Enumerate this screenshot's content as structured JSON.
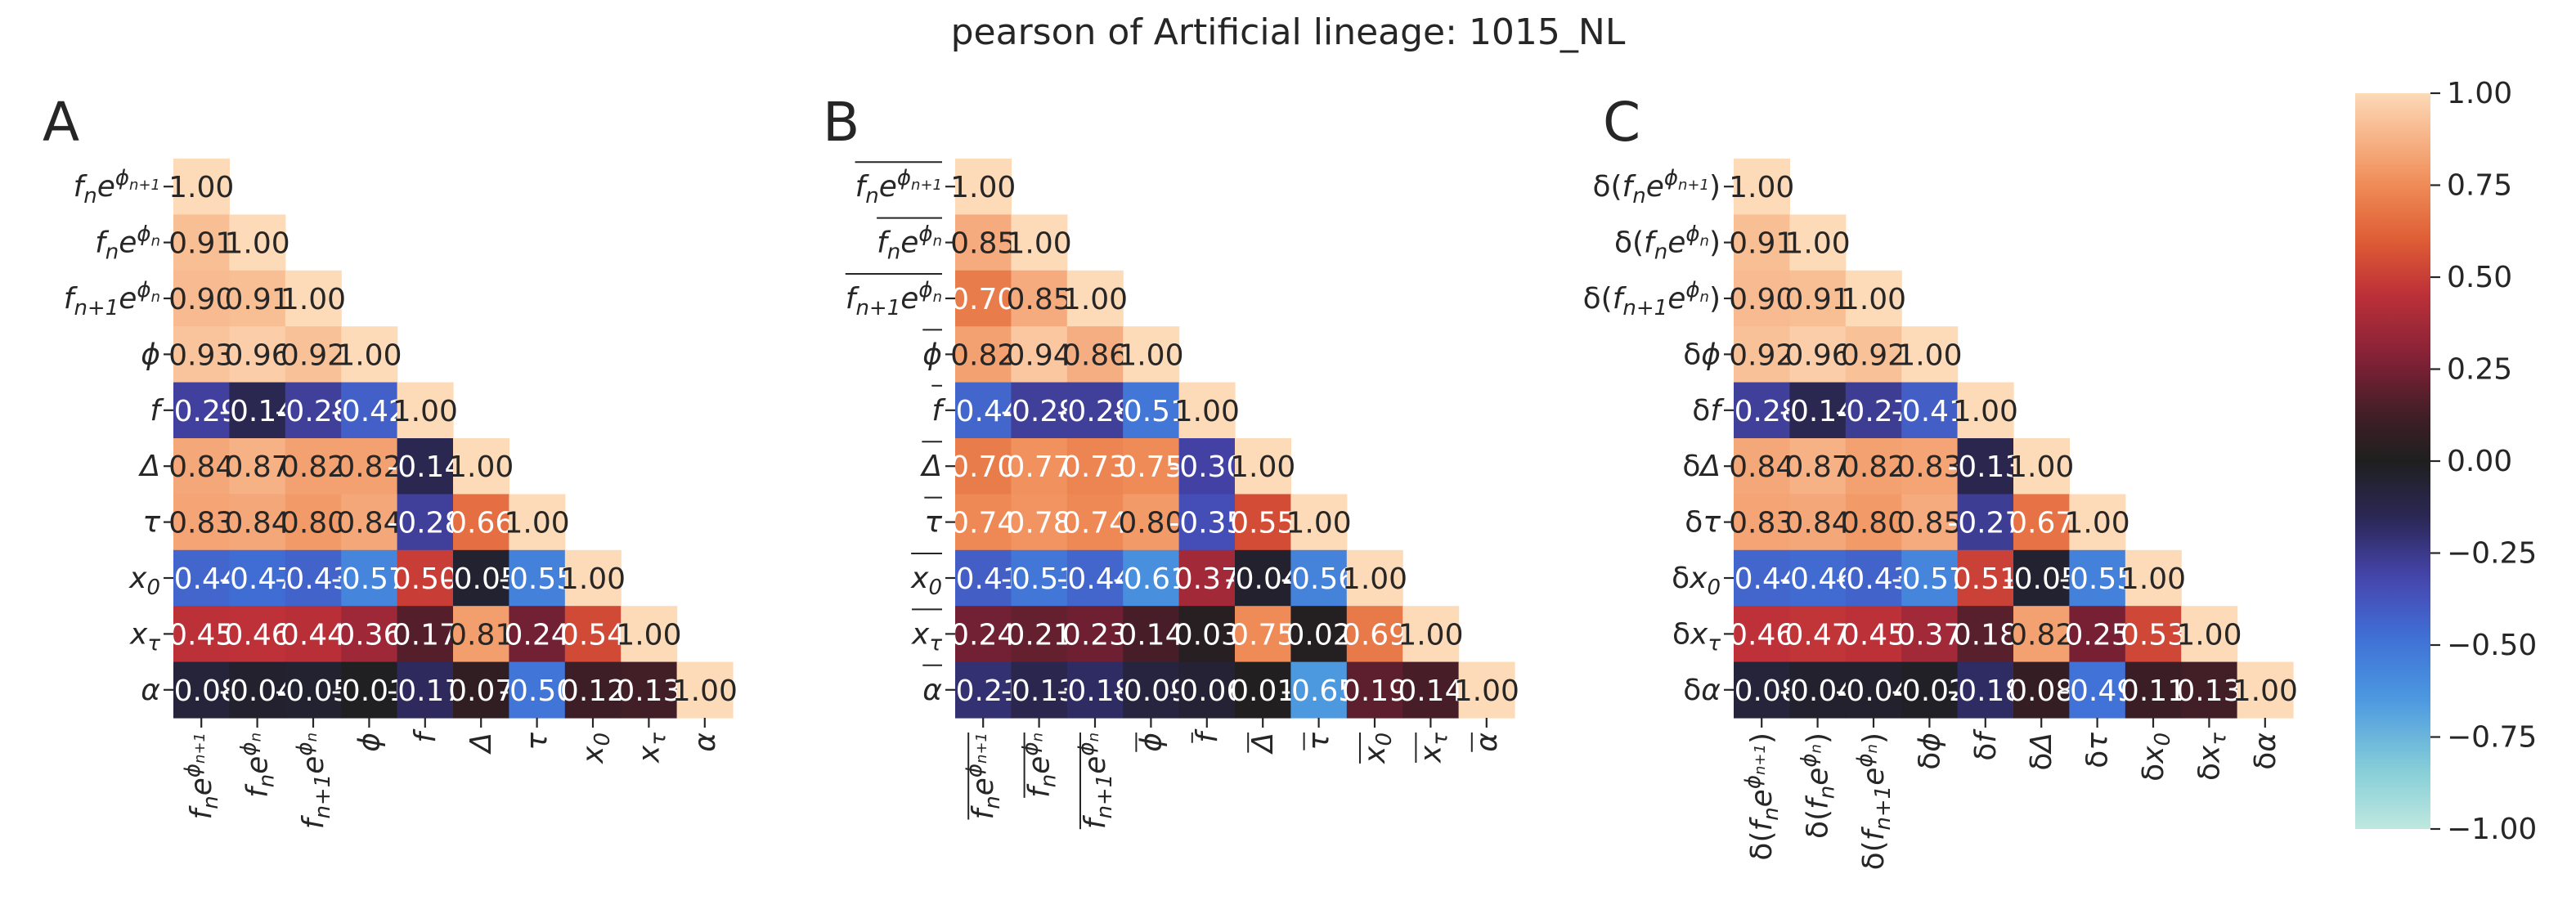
{
  "chart_data": {
    "type": "heatmap",
    "title": "pearson of Artificial lineage: 1015_NL",
    "colormap": "icefire",
    "vmin": -1.0,
    "vmax": 1.0,
    "colorbar_ticks": [
      "1.00",
      "0.75",
      "0.50",
      "0.25",
      "0.00",
      "−0.25",
      "−0.50",
      "−0.75",
      "−1.00"
    ],
    "colorbar_tick_values": [
      1.0,
      0.75,
      0.5,
      0.25,
      0.0,
      -0.25,
      -0.5,
      -0.75,
      -1.0
    ],
    "panels": [
      {
        "letter": "A",
        "labels": [
          "fₙe^{φₙ₊₁}",
          "fₙe^{φₙ}",
          "fₙ₊₁e^{φₙ}",
          "φ",
          "f",
          "Δ",
          "τ",
          "x₀",
          "xτ",
          "α"
        ],
        "label_parts": [
          {
            "base": "f",
            "sub": "n",
            "mid": "e",
            "sup": "ϕ",
            "supsub": "n+1"
          },
          {
            "base": "f",
            "sub": "n",
            "mid": "e",
            "sup": "ϕ",
            "supsub": "n"
          },
          {
            "base": "f",
            "sub": "n+1",
            "mid": "e",
            "sup": "ϕ",
            "supsub": "n"
          },
          {
            "base": "ϕ"
          },
          {
            "base": "f"
          },
          {
            "base": "Δ"
          },
          {
            "base": "τ"
          },
          {
            "base": "x",
            "sub": "0"
          },
          {
            "base": "x",
            "sub": "τ"
          },
          {
            "base": "α"
          }
        ],
        "values": [
          [
            1.0
          ],
          [
            0.91,
            1.0
          ],
          [
            0.9,
            0.91,
            1.0
          ],
          [
            0.93,
            0.96,
            0.92,
            1.0
          ],
          [
            -0.29,
            -0.14,
            -0.28,
            -0.42,
            1.0
          ],
          [
            0.84,
            0.87,
            0.82,
            0.82,
            -0.14,
            1.0
          ],
          [
            0.83,
            0.84,
            0.8,
            0.84,
            -0.28,
            0.66,
            1.0
          ],
          [
            -0.44,
            -0.47,
            -0.43,
            -0.57,
            0.5,
            -0.05,
            -0.55,
            1.0
          ],
          [
            0.45,
            0.46,
            0.44,
            0.36,
            0.17,
            0.81,
            0.24,
            0.54,
            1.0
          ],
          [
            -0.08,
            -0.04,
            -0.05,
            -0.01,
            -0.17,
            0.07,
            -0.5,
            0.12,
            0.13,
            1.0
          ]
        ],
        "text": [
          [
            "1.00"
          ],
          [
            "0.91",
            "1.00"
          ],
          [
            "0.90",
            "0.91",
            "1.00"
          ],
          [
            "0.93",
            "0.96",
            "0.92",
            "1.00"
          ],
          [
            "-0.29",
            "-0.14",
            "-0.28",
            "-0.42",
            "1.00"
          ],
          [
            "0.84",
            "0.87",
            "0.82",
            "0.82",
            "-0.14",
            "1.00"
          ],
          [
            "0.83",
            "0.84",
            "0.80",
            "0.84",
            "-0.28",
            "0.66",
            "1.00"
          ],
          [
            "-0.44",
            "-0.47",
            "-0.43",
            "-0.57",
            "0.50",
            "-0.05",
            "-0.55",
            "1.00"
          ],
          [
            "0.45",
            "0.46",
            "0.44",
            "0.36",
            "0.17",
            "0.81",
            "0.24",
            "0.54",
            "1.00"
          ],
          [
            "-0.08",
            "-0.04",
            "-0.05",
            "-0.01",
            "-0.17",
            "0.07",
            "-0.50",
            "0.12",
            "0.13",
            "1.00"
          ]
        ]
      },
      {
        "letter": "B",
        "labels": [
          "mean(fₙe^{φₙ₊₁})",
          "mean(fₙe^{φₙ})",
          "mean(fₙ₊₁e^{φₙ})",
          "mean(φ)",
          "mean(f)",
          "mean(Δ)",
          "mean(τ)",
          "mean(x₀)",
          "mean(xτ)",
          "mean(α)"
        ],
        "label_parts": [
          {
            "bar": true,
            "base": "f",
            "sub": "n",
            "mid": "e",
            "sup": "ϕ",
            "supsub": "n+1"
          },
          {
            "bar": true,
            "base": "f",
            "sub": "n",
            "mid": "e",
            "sup": "ϕ",
            "supsub": "n"
          },
          {
            "bar": true,
            "base": "f",
            "sub": "n+1",
            "mid": "e",
            "sup": "ϕ",
            "supsub": "n"
          },
          {
            "bar": true,
            "base": "ϕ"
          },
          {
            "bar": true,
            "base": "f"
          },
          {
            "bar": true,
            "base": "Δ"
          },
          {
            "bar": true,
            "base": "τ"
          },
          {
            "bar": true,
            "base": "x",
            "sub": "0"
          },
          {
            "bar": true,
            "base": "x",
            "sub": "τ"
          },
          {
            "bar": true,
            "base": "α"
          }
        ],
        "values": [
          [
            1.0
          ],
          [
            0.85,
            1.0
          ],
          [
            0.7,
            0.85,
            1.0
          ],
          [
            0.82,
            0.94,
            0.86,
            1.0
          ],
          [
            -0.44,
            -0.28,
            -0.28,
            -0.51,
            1.0
          ],
          [
            0.7,
            0.77,
            0.73,
            0.75,
            -0.3,
            1.0
          ],
          [
            0.74,
            0.78,
            0.74,
            0.8,
            -0.35,
            0.55,
            1.0
          ],
          [
            -0.41,
            -0.51,
            -0.44,
            -0.61,
            0.37,
            -0.04,
            -0.56,
            1.0
          ],
          [
            0.24,
            0.21,
            0.23,
            0.14,
            0.03,
            0.75,
            0.02,
            0.69,
            1.0
          ],
          [
            -0.21,
            -0.13,
            -0.18,
            -0.09,
            -0.06,
            0.01,
            -0.65,
            0.19,
            0.14,
            1.0
          ]
        ],
        "text": [
          [
            "1.00"
          ],
          [
            "0.85",
            "1.00"
          ],
          [
            "0.70",
            "0.85",
            "1.00"
          ],
          [
            "0.82",
            "0.94",
            "0.86",
            "1.00"
          ],
          [
            "-0.44",
            "-0.28",
            "-0.28",
            "-0.51",
            "1.00"
          ],
          [
            "0.70",
            "0.77",
            "0.73",
            "0.75",
            "-0.30",
            "1.00"
          ],
          [
            "0.74",
            "0.78",
            "0.74",
            "0.80",
            "-0.35",
            "0.55",
            "1.00"
          ],
          [
            "-0.41",
            "-0.51",
            "-0.44",
            "-0.61",
            "0.37",
            "-0.04",
            "-0.56",
            "1.00"
          ],
          [
            "0.24",
            "0.21",
            "0.23",
            "0.14",
            "0.03",
            "0.75",
            "0.02",
            "0.69",
            "1.00"
          ],
          [
            "-0.21",
            "-0.13",
            "-0.18",
            "-0.09",
            "-0.06",
            "0.01",
            "-0.65",
            "0.19",
            "0.14",
            "1.00"
          ]
        ]
      },
      {
        "letter": "C",
        "labels": [
          "δ(fₙe^{φₙ₊₁})",
          "δ(fₙe^{φₙ})",
          "δ(fₙ₊₁e^{φₙ})",
          "δφ",
          "δf",
          "δΔ",
          "δτ",
          "δx₀",
          "δxτ",
          "δα"
        ],
        "label_parts": [
          {
            "pre": "δ(",
            "base": "f",
            "sub": "n",
            "mid": "e",
            "sup": "ϕ",
            "supsub": "n+1",
            "post": ")"
          },
          {
            "pre": "δ(",
            "base": "f",
            "sub": "n",
            "mid": "e",
            "sup": "ϕ",
            "supsub": "n",
            "post": ")"
          },
          {
            "pre": "δ(",
            "base": "f",
            "sub": "n+1",
            "mid": "e",
            "sup": "ϕ",
            "supsub": "n",
            "post": ")"
          },
          {
            "pre": "δ",
            "base": "ϕ"
          },
          {
            "pre": "δ",
            "base": "f"
          },
          {
            "pre": "δ",
            "base": "Δ"
          },
          {
            "pre": "δ",
            "base": "τ"
          },
          {
            "pre": "δ",
            "base": "x",
            "sub": "0"
          },
          {
            "pre": "δ",
            "base": "x",
            "sub": "τ"
          },
          {
            "pre": "δ",
            "base": "α"
          }
        ],
        "values": [
          [
            1.0
          ],
          [
            0.91,
            1.0
          ],
          [
            0.9,
            0.91,
            1.0
          ],
          [
            0.92,
            0.96,
            0.92,
            1.0
          ],
          [
            -0.28,
            -0.14,
            -0.27,
            -0.41,
            1.0
          ],
          [
            0.84,
            0.87,
            0.82,
            0.83,
            -0.13,
            1.0
          ],
          [
            0.83,
            0.84,
            0.8,
            0.85,
            -0.27,
            0.67,
            1.0
          ],
          [
            -0.44,
            -0.46,
            -0.43,
            -0.57,
            0.51,
            -0.05,
            -0.55,
            1.0
          ],
          [
            0.46,
            0.47,
            0.45,
            0.37,
            0.18,
            0.82,
            0.25,
            0.53,
            1.0
          ],
          [
            -0.08,
            -0.04,
            -0.04,
            -0.02,
            -0.18,
            0.08,
            -0.49,
            0.11,
            0.13,
            1.0
          ]
        ],
        "text": [
          [
            "1.00"
          ],
          [
            "0.91",
            "1.00"
          ],
          [
            "0.90",
            "0.91",
            "1.00"
          ],
          [
            "0.92",
            "0.96",
            "0.92",
            "1.00"
          ],
          [
            "-0.28",
            "-0.14",
            "-0.27",
            "-0.41",
            "1.00"
          ],
          [
            "0.84",
            "0.87",
            "0.82",
            "0.83",
            "-0.13",
            "1.00"
          ],
          [
            "0.83",
            "0.84",
            "0.80",
            "0.85",
            "-0.27",
            "0.67",
            "1.00"
          ],
          [
            "-0.44",
            "-0.46",
            "-0.43",
            "-0.57",
            "0.51",
            "-0.05",
            "-0.55",
            "1.00"
          ],
          [
            "0.46",
            "0.47",
            "0.45",
            "0.37",
            "0.18",
            "0.82",
            "0.25",
            "0.53",
            "1.00"
          ],
          [
            "-0.08",
            "-0.04",
            "-0.04",
            "-0.02",
            "-0.18",
            "0.08",
            "-0.49",
            "0.11",
            "0.13",
            "1.00"
          ]
        ]
      }
    ]
  }
}
